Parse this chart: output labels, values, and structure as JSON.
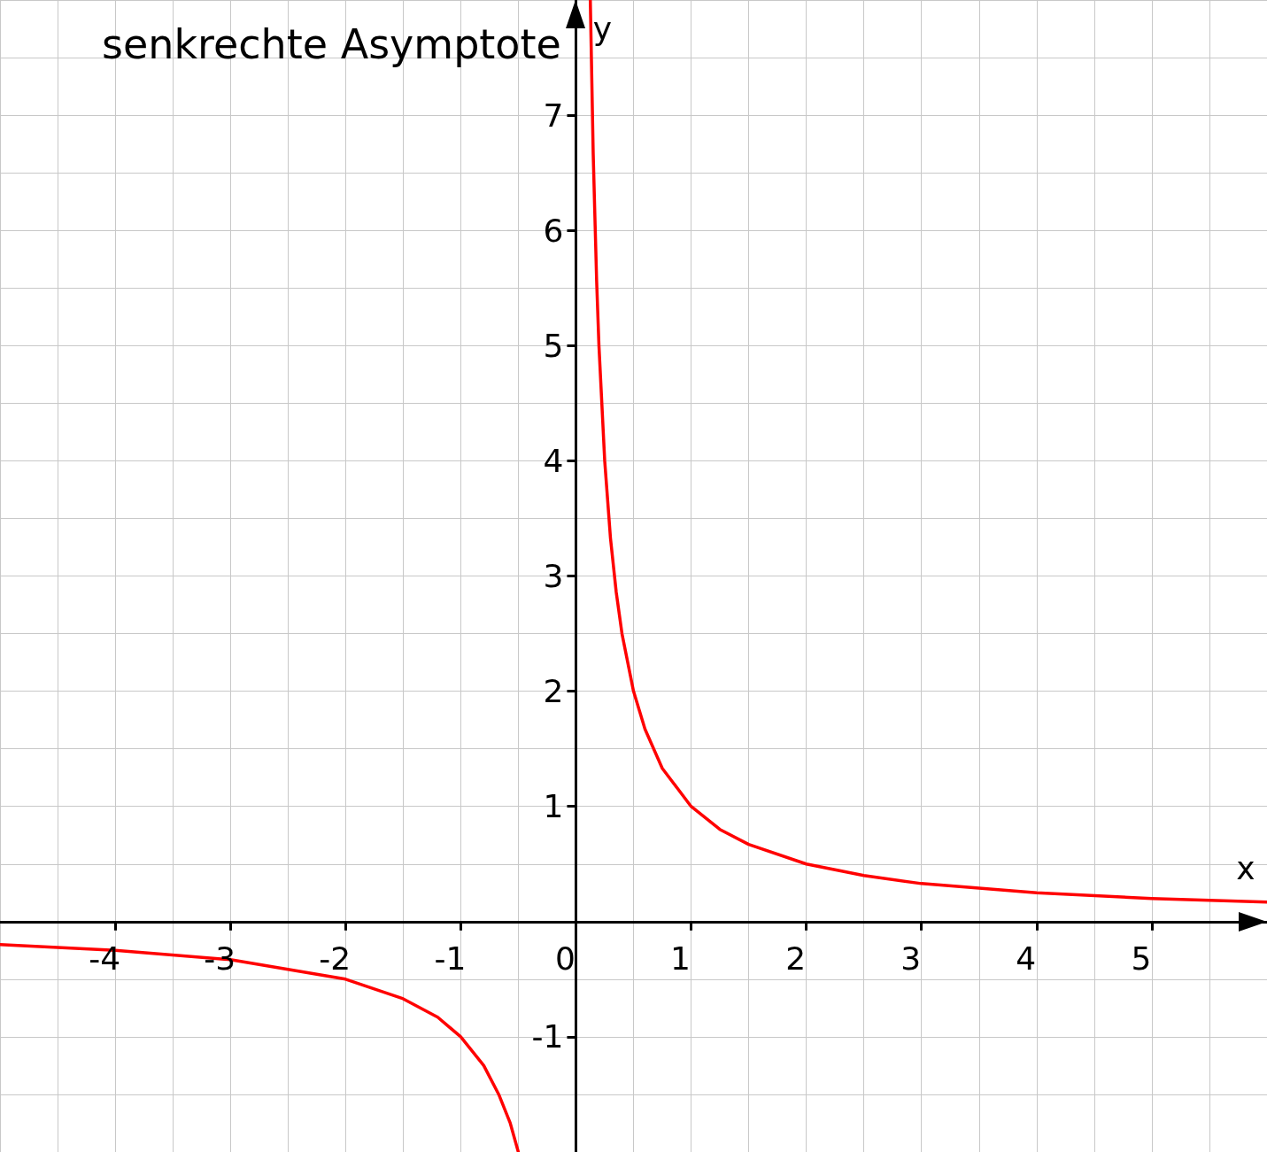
{
  "chart_data": {
    "type": "line",
    "title": "senkrechte Asymptote",
    "xlabel": "x",
    "ylabel": "y",
    "xlim": [
      -5,
      6
    ],
    "ylim": [
      -2,
      8
    ],
    "xticks": [
      -4,
      -3,
      -2,
      -1,
      0,
      1,
      2,
      3,
      4,
      5
    ],
    "yticks": [
      -1,
      1,
      2,
      3,
      4,
      5,
      6,
      7
    ],
    "grid": true,
    "marker": "none",
    "line_style": "solid",
    "series": [
      {
        "color": "#ff0000",
        "x": [
          -5,
          -4,
          -3,
          -2,
          -1.5,
          -1.2,
          -1,
          -0.8,
          -0.67,
          -0.57,
          -0.5
        ],
        "values": [
          -0.2,
          -0.25,
          -0.33,
          -0.5,
          -0.67,
          -0.83,
          -1,
          -1.25,
          -1.5,
          -1.75,
          -2
        ]
      },
      {
        "color": "#ff0000",
        "x": [
          0.125,
          0.15,
          0.18,
          0.2,
          0.25,
          0.3,
          0.35,
          0.4,
          0.5,
          0.6,
          0.75,
          1,
          1.25,
          1.5,
          2,
          2.5,
          3,
          4,
          5,
          6
        ],
        "values": [
          8,
          6.67,
          5.56,
          5,
          4,
          3.33,
          2.86,
          2.5,
          2,
          1.67,
          1.33,
          1,
          0.8,
          0.67,
          0.5,
          0.4,
          0.33,
          0.25,
          0.2,
          0.17
        ]
      }
    ]
  }
}
